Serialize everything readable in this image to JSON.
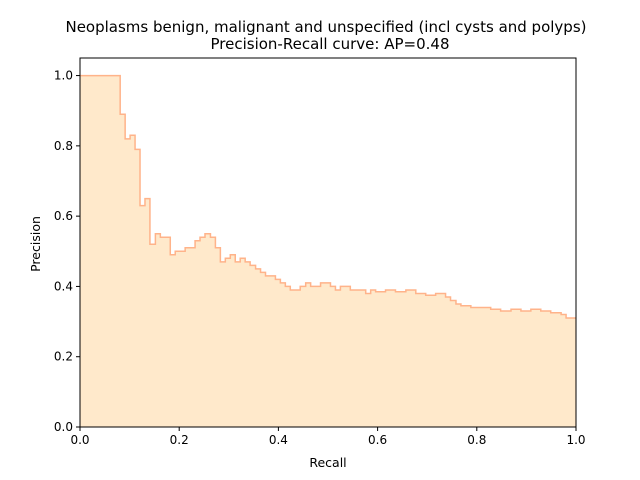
{
  "chart_data": {
    "type": "area",
    "title": "Neoplasms benign, malignant and unspecified (incl cysts and polyps)",
    "subtitle": "Precision-Recall curve: AP=0.48",
    "xlabel": "Recall",
    "ylabel": "Precision",
    "xlim": [
      0.0,
      1.0
    ],
    "ylim": [
      0.0,
      1.05
    ],
    "xticks": [
      "0.0",
      "0.2",
      "0.4",
      "0.6",
      "0.8",
      "1.0"
    ],
    "yticks": [
      "0.0",
      "0.2",
      "0.4",
      "0.6",
      "0.8",
      "1.0"
    ],
    "grid": false,
    "step": "post",
    "line_color": "#ffb38a",
    "fill_color": "#ffe9cb",
    "series": [
      {
        "recall": [
          0.0,
          0.081,
          0.091,
          0.101,
          0.111,
          0.121,
          0.131,
          0.141,
          0.152,
          0.162,
          0.182,
          0.192,
          0.212,
          0.232,
          0.242,
          0.252,
          0.263,
          0.273,
          0.283,
          0.293,
          0.303,
          0.313,
          0.323,
          0.333,
          0.343,
          0.354,
          0.364,
          0.374,
          0.394,
          0.404,
          0.414,
          0.424,
          0.444,
          0.455,
          0.465,
          0.485,
          0.505,
          0.515,
          0.525,
          0.535,
          0.545,
          0.556,
          0.576,
          0.586,
          0.596,
          0.616,
          0.636,
          0.657,
          0.677,
          0.687,
          0.697,
          0.717,
          0.737,
          0.747,
          0.758,
          0.768,
          0.788,
          0.808,
          0.828,
          0.848,
          0.869,
          0.889,
          0.909,
          0.929,
          0.949,
          0.97,
          0.98,
          1.0
        ],
        "precision": [
          1.0,
          0.89,
          0.82,
          0.83,
          0.79,
          0.63,
          0.65,
          0.52,
          0.55,
          0.54,
          0.49,
          0.5,
          0.51,
          0.53,
          0.54,
          0.55,
          0.54,
          0.51,
          0.47,
          0.48,
          0.49,
          0.47,
          0.48,
          0.47,
          0.46,
          0.45,
          0.44,
          0.43,
          0.42,
          0.41,
          0.4,
          0.39,
          0.4,
          0.41,
          0.4,
          0.41,
          0.4,
          0.39,
          0.4,
          0.4,
          0.39,
          0.39,
          0.38,
          0.39,
          0.385,
          0.39,
          0.385,
          0.39,
          0.38,
          0.38,
          0.375,
          0.38,
          0.37,
          0.36,
          0.35,
          0.345,
          0.34,
          0.34,
          0.335,
          0.33,
          0.335,
          0.33,
          0.335,
          0.33,
          0.325,
          0.32,
          0.31,
          0.31
        ]
      }
    ]
  }
}
